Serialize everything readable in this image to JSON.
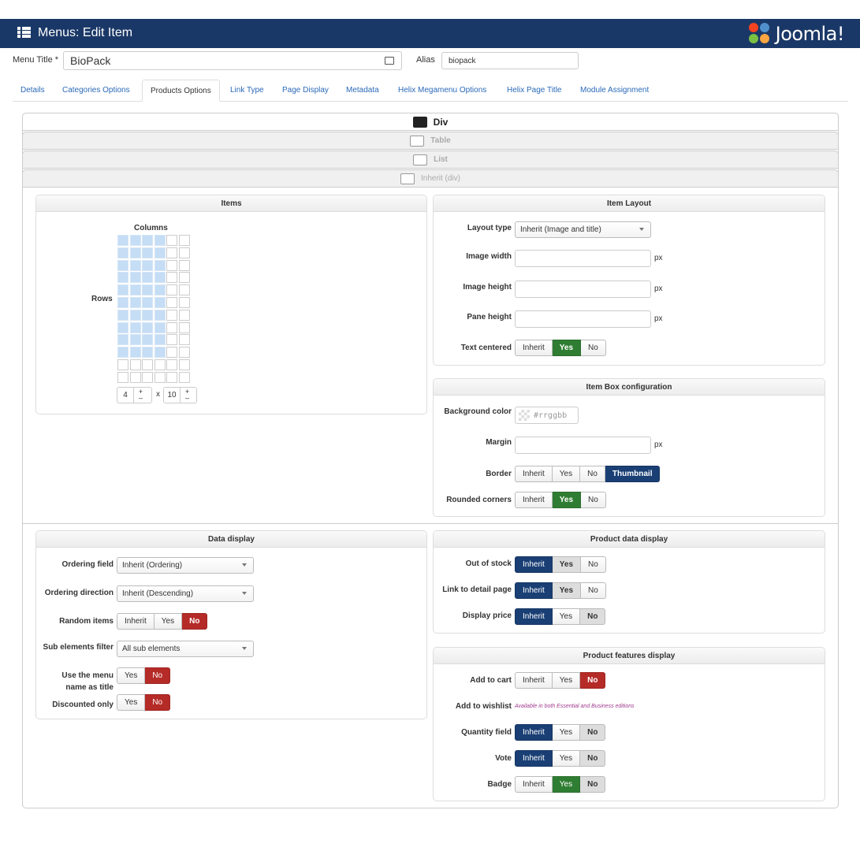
{
  "header": {
    "title": "Menus: Edit Item",
    "logo": "Joomla!"
  },
  "form": {
    "menu_title_label": "Menu Title *",
    "menu_title_value": "BioPack",
    "alias_label": "Alias",
    "alias_value": "biopack"
  },
  "tabs": [
    "Details",
    "Categories Options",
    "Products Options",
    "Link Type",
    "Page Display",
    "Metadata",
    "Helix Megamenu Options",
    "Helix Page Title",
    "Module Assignment"
  ],
  "active_tab": "Products Options",
  "views": [
    "Div",
    "Table",
    "List",
    "Inherit (div)"
  ],
  "items_panel": {
    "title": "Items",
    "columns_label": "Columns",
    "rows_label": "Rows",
    "columns_value": "4",
    "times": "x",
    "rows_value": "10",
    "plus": "+",
    "minus": "–"
  },
  "item_layout": {
    "title": "Item Layout",
    "layout_type_label": "Layout type",
    "layout_type_value": "Inherit (Image and title)",
    "image_width_label": "Image width",
    "image_height_label": "Image height",
    "pane_height_label": "Pane height",
    "unit": "px",
    "text_centered_label": "Text centered",
    "text_centered_options": [
      "Inherit",
      "Yes",
      "No"
    ]
  },
  "item_box": {
    "title": "Item Box configuration",
    "bg_color_label": "Background color",
    "bg_color_placeholder": "#rrggbb",
    "margin_label": "Margin",
    "unit": "px",
    "border_label": "Border",
    "border_options": [
      "Inherit",
      "Yes",
      "No",
      "Thumbnail"
    ],
    "rounded_label": "Rounded corners",
    "rounded_options": [
      "Inherit",
      "Yes",
      "No"
    ]
  },
  "data_display": {
    "title": "Data display",
    "ordering_field_label": "Ordering field",
    "ordering_field_value": "Inherit (Ordering)",
    "ordering_dir_label": "Ordering direction",
    "ordering_dir_value": "Inherit (Descending)",
    "random_label": "Random items",
    "random_options": [
      "Inherit",
      "Yes",
      "No"
    ],
    "sub_filter_label": "Sub elements filter",
    "sub_filter_value": "All sub elements",
    "menu_name_label_1": "Use the menu",
    "menu_name_label_2": "name as title",
    "menu_name_options": [
      "Yes",
      "No"
    ],
    "discounted_label": "Discounted only",
    "discounted_options": [
      "Yes",
      "No"
    ]
  },
  "product_data": {
    "title": "Product data display",
    "out_of_stock_label": "Out of stock",
    "link_detail_label": "Link to detail page",
    "display_price_label": "Display price",
    "options": [
      "Inherit",
      "Yes",
      "No"
    ]
  },
  "features": {
    "title": "Product features display",
    "add_to_cart_label": "Add to cart",
    "add_to_wishlist_label": "Add to wishlist",
    "wishlist_note": "Available in both Essential and Business editions",
    "quantity_label": "Quantity field",
    "vote_label": "Vote",
    "badge_label": "Badge",
    "options": [
      "Inherit",
      "Yes",
      "No"
    ]
  },
  "colors": {
    "header_bg": "#1a3867",
    "green": "#2f7d32",
    "red": "#b52b27",
    "blue": "#1a3f74",
    "grid_on": "#c5ddf5"
  },
  "grid": {
    "total_cols": 6,
    "total_rows": 12,
    "selected_cols": 4,
    "selected_rows": 10
  }
}
